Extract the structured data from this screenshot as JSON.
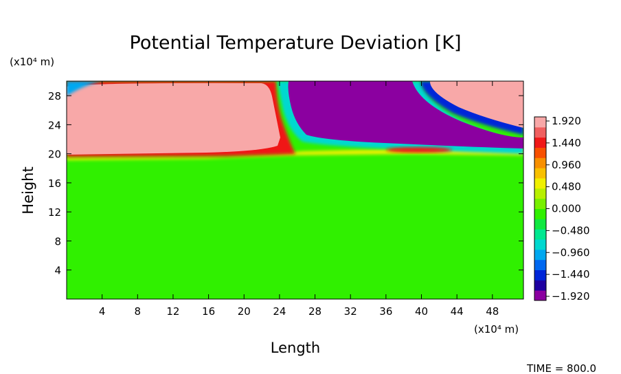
{
  "chart_data": {
    "type": "heatmap",
    "title": "Potential Temperature Deviation [K]",
    "xlabel": "Length",
    "ylabel": "Height",
    "x_unit": "(x10⁴ m)",
    "y_unit": "(x10⁴ m)",
    "xlim": [
      0,
      51.5
    ],
    "ylim": [
      0,
      30
    ],
    "x_ticks": [
      "4",
      "8",
      "12",
      "16",
      "20",
      "24",
      "28",
      "32",
      "36",
      "40",
      "44",
      "48"
    ],
    "y_ticks": [
      "4",
      "8",
      "12",
      "16",
      "20",
      "24",
      "28"
    ],
    "colorbar": {
      "labels": [
        "1.920",
        "1.440",
        "0.960",
        "0.480",
        "0.000",
        "−0.480",
        "−0.960",
        "−1.440",
        "−1.920"
      ],
      "vmin": -1.92,
      "vmax": 1.92,
      "colors": [
        "#8b00a0",
        "#1e00a0",
        "#0026d8",
        "#0068f0",
        "#00a8f0",
        "#00d8d0",
        "#00e890",
        "#10e840",
        "#30f000",
        "#78f000",
        "#b8f000",
        "#f0f000",
        "#f8c000",
        "#f89000",
        "#f85000",
        "#f01818",
        "#f06060",
        "#f8a8a8"
      ]
    },
    "regions": [
      {
        "description": "uniform field below ~20",
        "value": 0.0
      },
      {
        "description": "upper-left layer, x 0-24, y 20-30",
        "value": 1.92
      },
      {
        "description": "upper-middle trough, x 24-44, y 21-30",
        "value": -1.92
      },
      {
        "description": "upper-right lobe, x 40-51.5, y 23-30",
        "value": 1.92
      }
    ],
    "annotation": "TIME = 800.0"
  }
}
